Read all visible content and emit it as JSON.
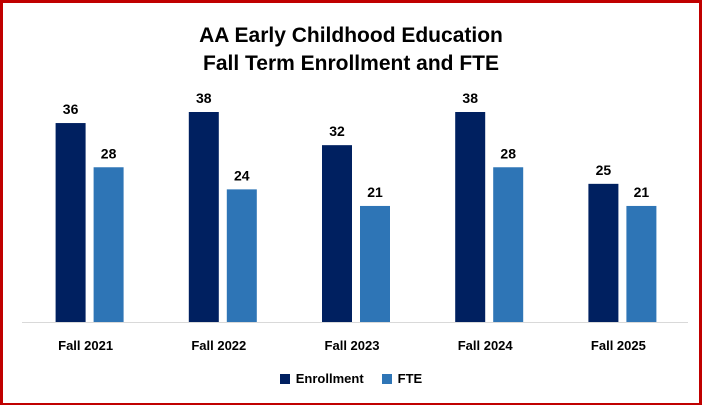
{
  "chart_data": {
    "type": "bar",
    "title_line1": "AA Early Childhood Education",
    "title_line2": "Fall Term Enrollment and FTE",
    "categories": [
      "Fall 2021",
      "Fall 2022",
      "Fall 2023",
      "Fall 2024",
      "Fall 2025"
    ],
    "series": [
      {
        "name": "Enrollment",
        "values": [
          36,
          38,
          32,
          38,
          25
        ],
        "color": "#002060"
      },
      {
        "name": "FTE",
        "values": [
          28,
          24,
          21,
          28,
          21
        ],
        "color": "#2e75b6"
      }
    ],
    "ylim": [
      0,
      38
    ],
    "grid": false,
    "legend": "bottom"
  }
}
